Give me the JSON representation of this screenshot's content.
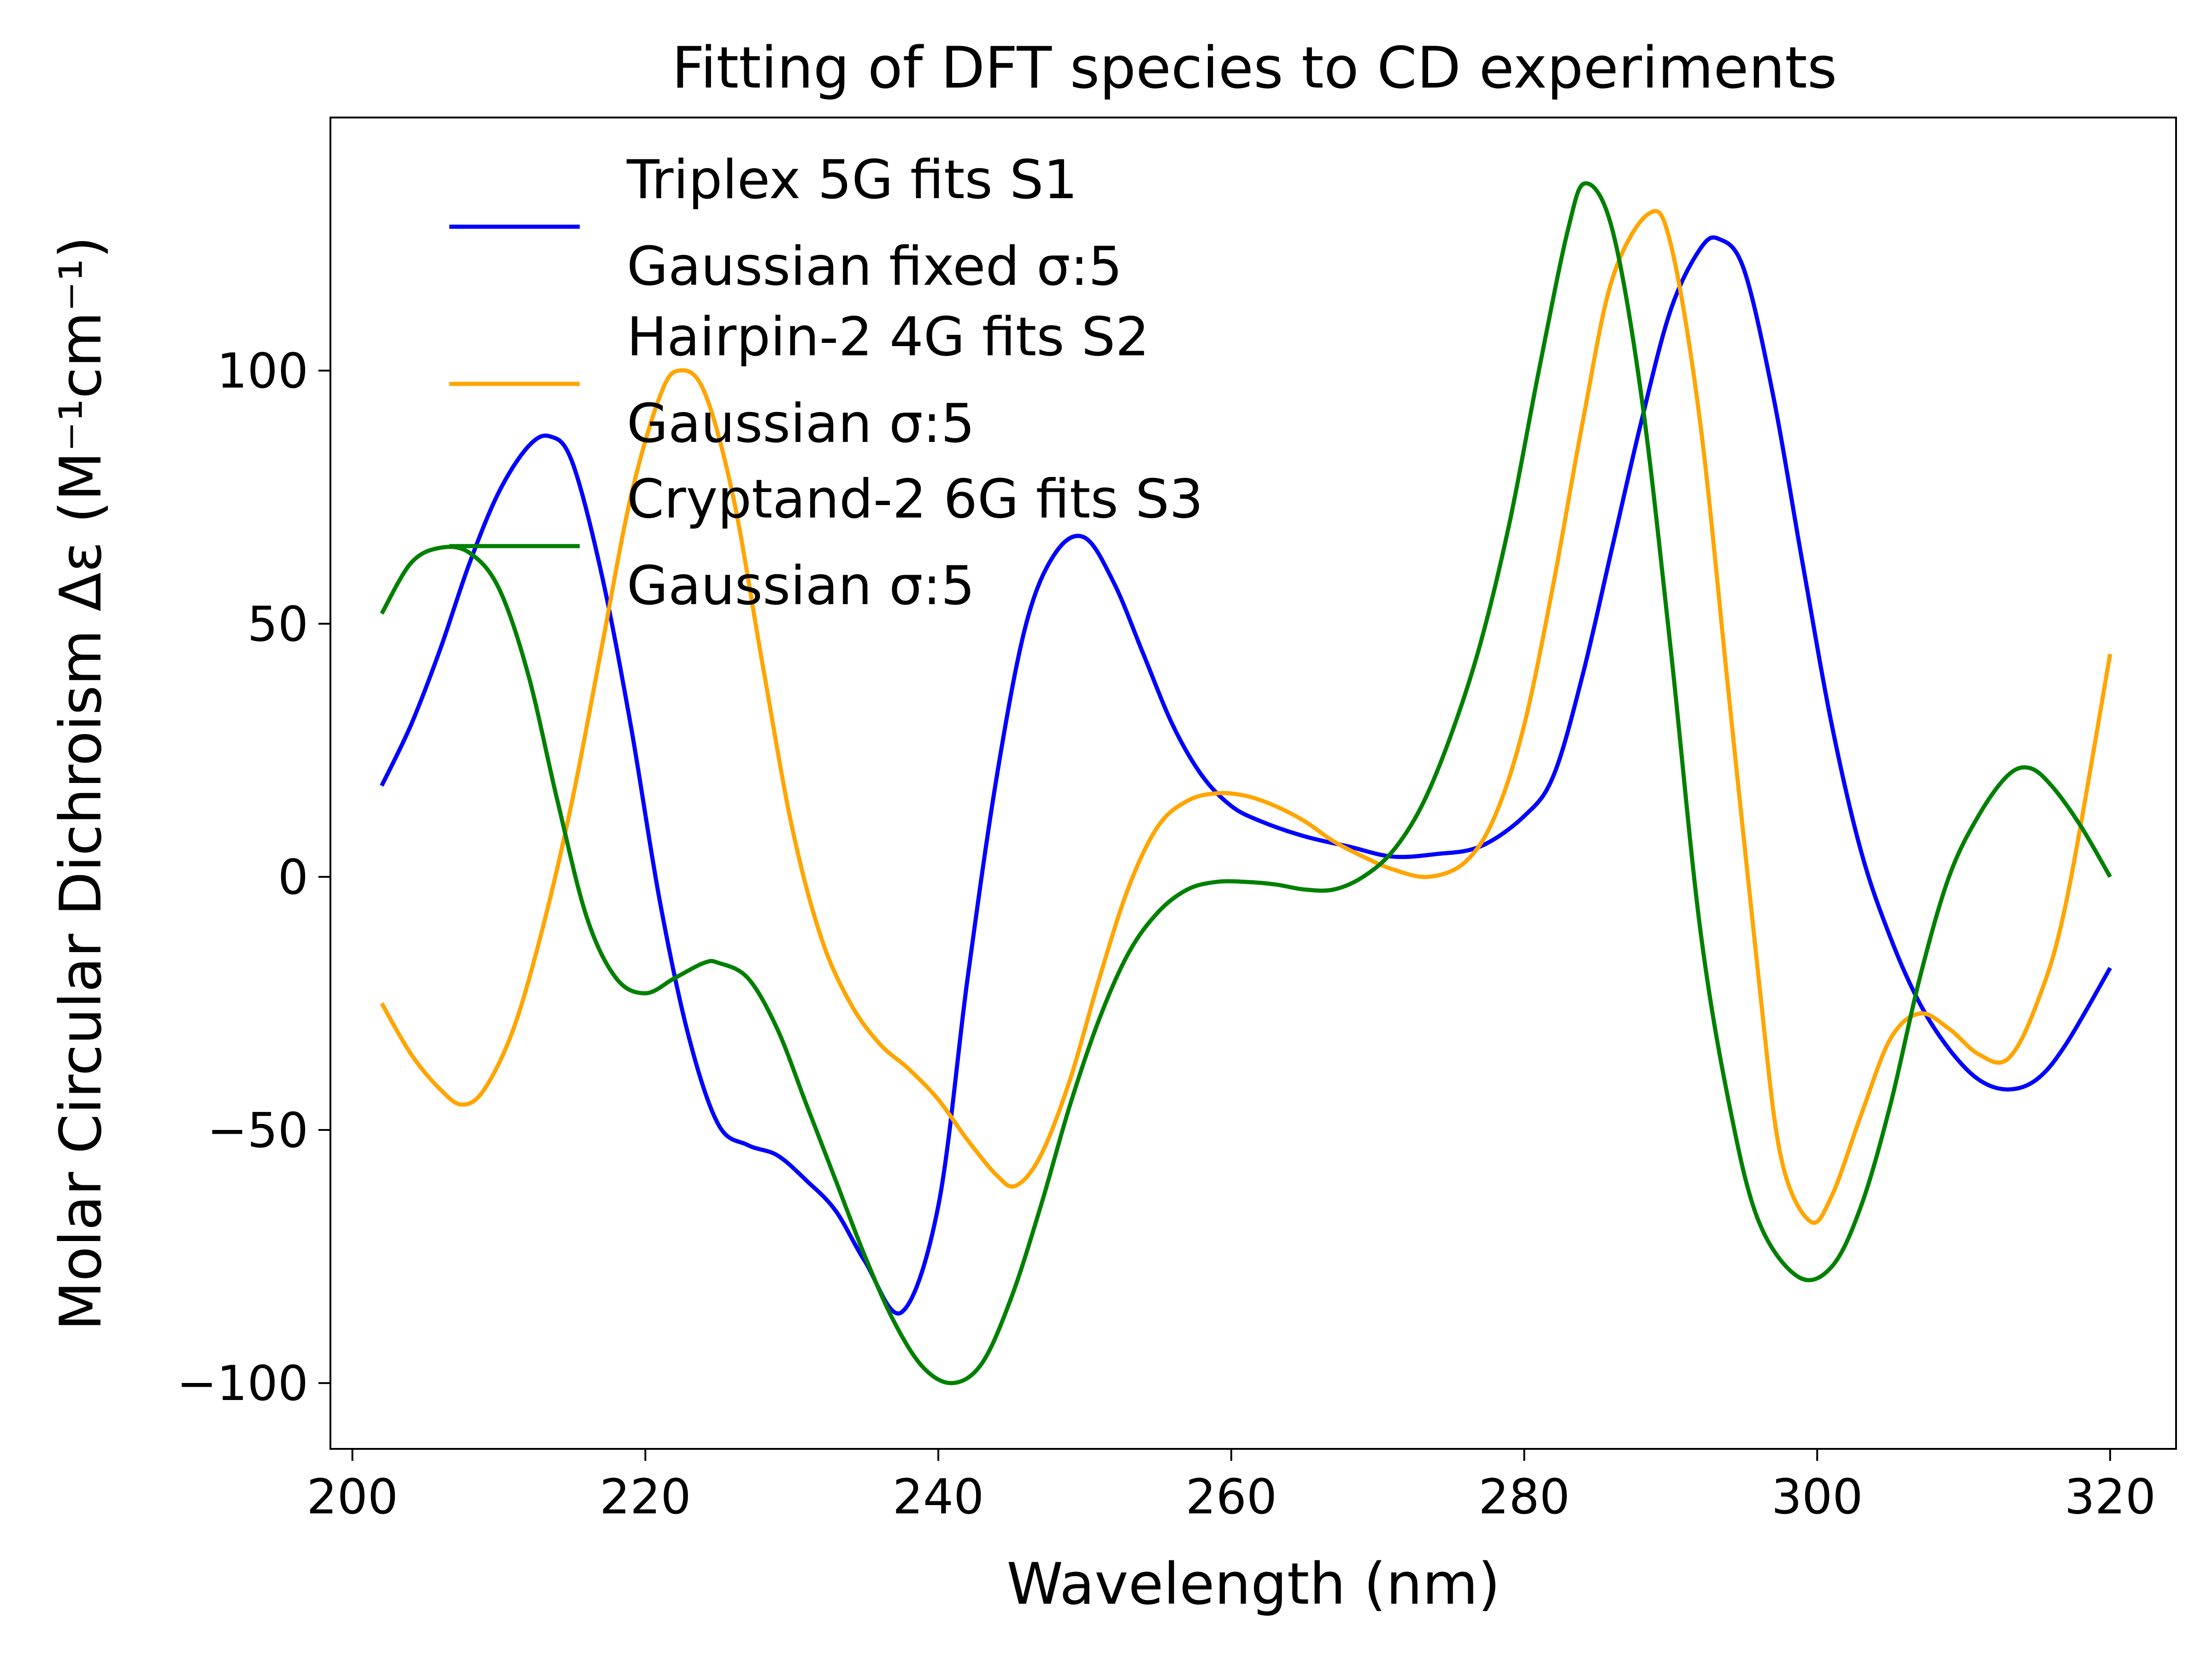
{
  "chart_data": {
    "type": "line",
    "title": "Fitting of DFT species to CD experiments",
    "xlabel": "Wavelength (nm)",
    "ylabel": "Molar Circular Dichroism Δε (M⁻¹cm⁻¹)",
    "xlim": [
      198.5,
      324.5
    ],
    "ylim": [
      -113,
      150
    ],
    "xticks": [
      200,
      220,
      240,
      260,
      280,
      300,
      320
    ],
    "yticks": [
      -100,
      -50,
      0,
      50,
      100
    ],
    "ytick_labels": [
      "−100",
      "−50",
      "0",
      "50",
      "100"
    ],
    "grid": false,
    "legend_position": "upper-left",
    "series": [
      {
        "name": "Triplex 5G fits S1\nGaussian fixed σ:5",
        "color": "#0000ff",
        "x": [
          202,
          204,
          206,
          208,
          210,
          212,
          213.5,
          215,
          217,
          219,
          221,
          223,
          225,
          227,
          229,
          231,
          233,
          235,
          237.5,
          240,
          242,
          244,
          246,
          248,
          250,
          252,
          254,
          256,
          258,
          260,
          262,
          265,
          268,
          271,
          274,
          277,
          280,
          282,
          284,
          286,
          288,
          290,
          292,
          293.3,
          295,
          297,
          299,
          301,
          303,
          305,
          307,
          309,
          311,
          313,
          315,
          317,
          320
        ],
        "y": [
          18,
          30,
          45,
          62,
          76,
          85,
          87,
          82,
          60,
          30,
          -5,
          -32,
          -49,
          -53,
          -55,
          -60,
          -66,
          -76,
          -86,
          -65,
          -20,
          20,
          50,
          64,
          67,
          58,
          44,
          30,
          20,
          14,
          11,
          8,
          6,
          4,
          4.5,
          6,
          12,
          20,
          40,
          65,
          90,
          112,
          124,
          126,
          120,
          95,
          62,
          30,
          5,
          -12,
          -25,
          -34,
          -40,
          -42,
          -40,
          -33,
          -18
        ]
      },
      {
        "name": "Hairpin-2 4G fits S2\nGaussian σ:5",
        "color": "#ffa500",
        "x": [
          202,
          204,
          206,
          207.5,
          209,
          211,
          213,
          215,
          217,
          219,
          221,
          222.3,
          224,
          226,
          228,
          230,
          232,
          234,
          236,
          238,
          240,
          242,
          244,
          245.3,
          247,
          249,
          251,
          253,
          255,
          257,
          259,
          261,
          263,
          265,
          267,
          269,
          271,
          273.5,
          276,
          278,
          280,
          282,
          284,
          286,
          288.5,
          290,
          292,
          294,
          296,
          297.5,
          299.5,
          301,
          303,
          305,
          307,
          309,
          311,
          313,
          315,
          317,
          320
        ],
        "y": [
          -25,
          -35,
          -42,
          -45,
          -42,
          -30,
          -10,
          15,
          45,
          75,
          95,
          100,
          96,
          75,
          42,
          10,
          -12,
          -25,
          -33,
          -38,
          -44,
          -52,
          -59,
          -61,
          -55,
          -40,
          -20,
          -2,
          10,
          15,
          16.5,
          16,
          14,
          11,
          7,
          4,
          1.5,
          0,
          3,
          12,
          30,
          58,
          90,
          118,
          131,
          125,
          90,
          35,
          -20,
          -55,
          -68,
          -63,
          -47,
          -32,
          -27,
          -30,
          -35,
          -36,
          -25,
          -5,
          44
        ]
      },
      {
        "name": "Cryptand-2 6G fits S3\nGaussian σ:5",
        "color": "#008000",
        "x": [
          202,
          204,
          206,
          208,
          210,
          212,
          214,
          216,
          218,
          220,
          222,
          224,
          225,
          227,
          229,
          231,
          233,
          235,
          237,
          239,
          241,
          243,
          245,
          247,
          249,
          251,
          253,
          255,
          257,
          259,
          261,
          263,
          265,
          267,
          269,
          271,
          273,
          275,
          277,
          279,
          281,
          283,
          284.2,
          286,
          288,
          290,
          292,
          294,
          296,
          298.7,
          301,
          303,
          305,
          307,
          309,
          311,
          313,
          314.5,
          316,
          318,
          320
        ],
        "y": [
          52,
          62,
          65,
          64,
          57,
          40,
          15,
          -8,
          -20,
          -23,
          -20,
          -17,
          -17,
          -20,
          -30,
          -45,
          -60,
          -75,
          -88,
          -97,
          -100,
          -96,
          -83,
          -65,
          -45,
          -28,
          -15,
          -7,
          -2.5,
          -1,
          -1,
          -1.5,
          -2.5,
          -2.5,
          0,
          5,
          14,
          28,
          46,
          70,
          100,
          128,
          137,
          128,
          95,
          45,
          -10,
          -45,
          -68,
          -79,
          -77,
          -65,
          -45,
          -20,
          0,
          12,
          20,
          21.5,
          18,
          10,
          0
        ]
      }
    ]
  }
}
